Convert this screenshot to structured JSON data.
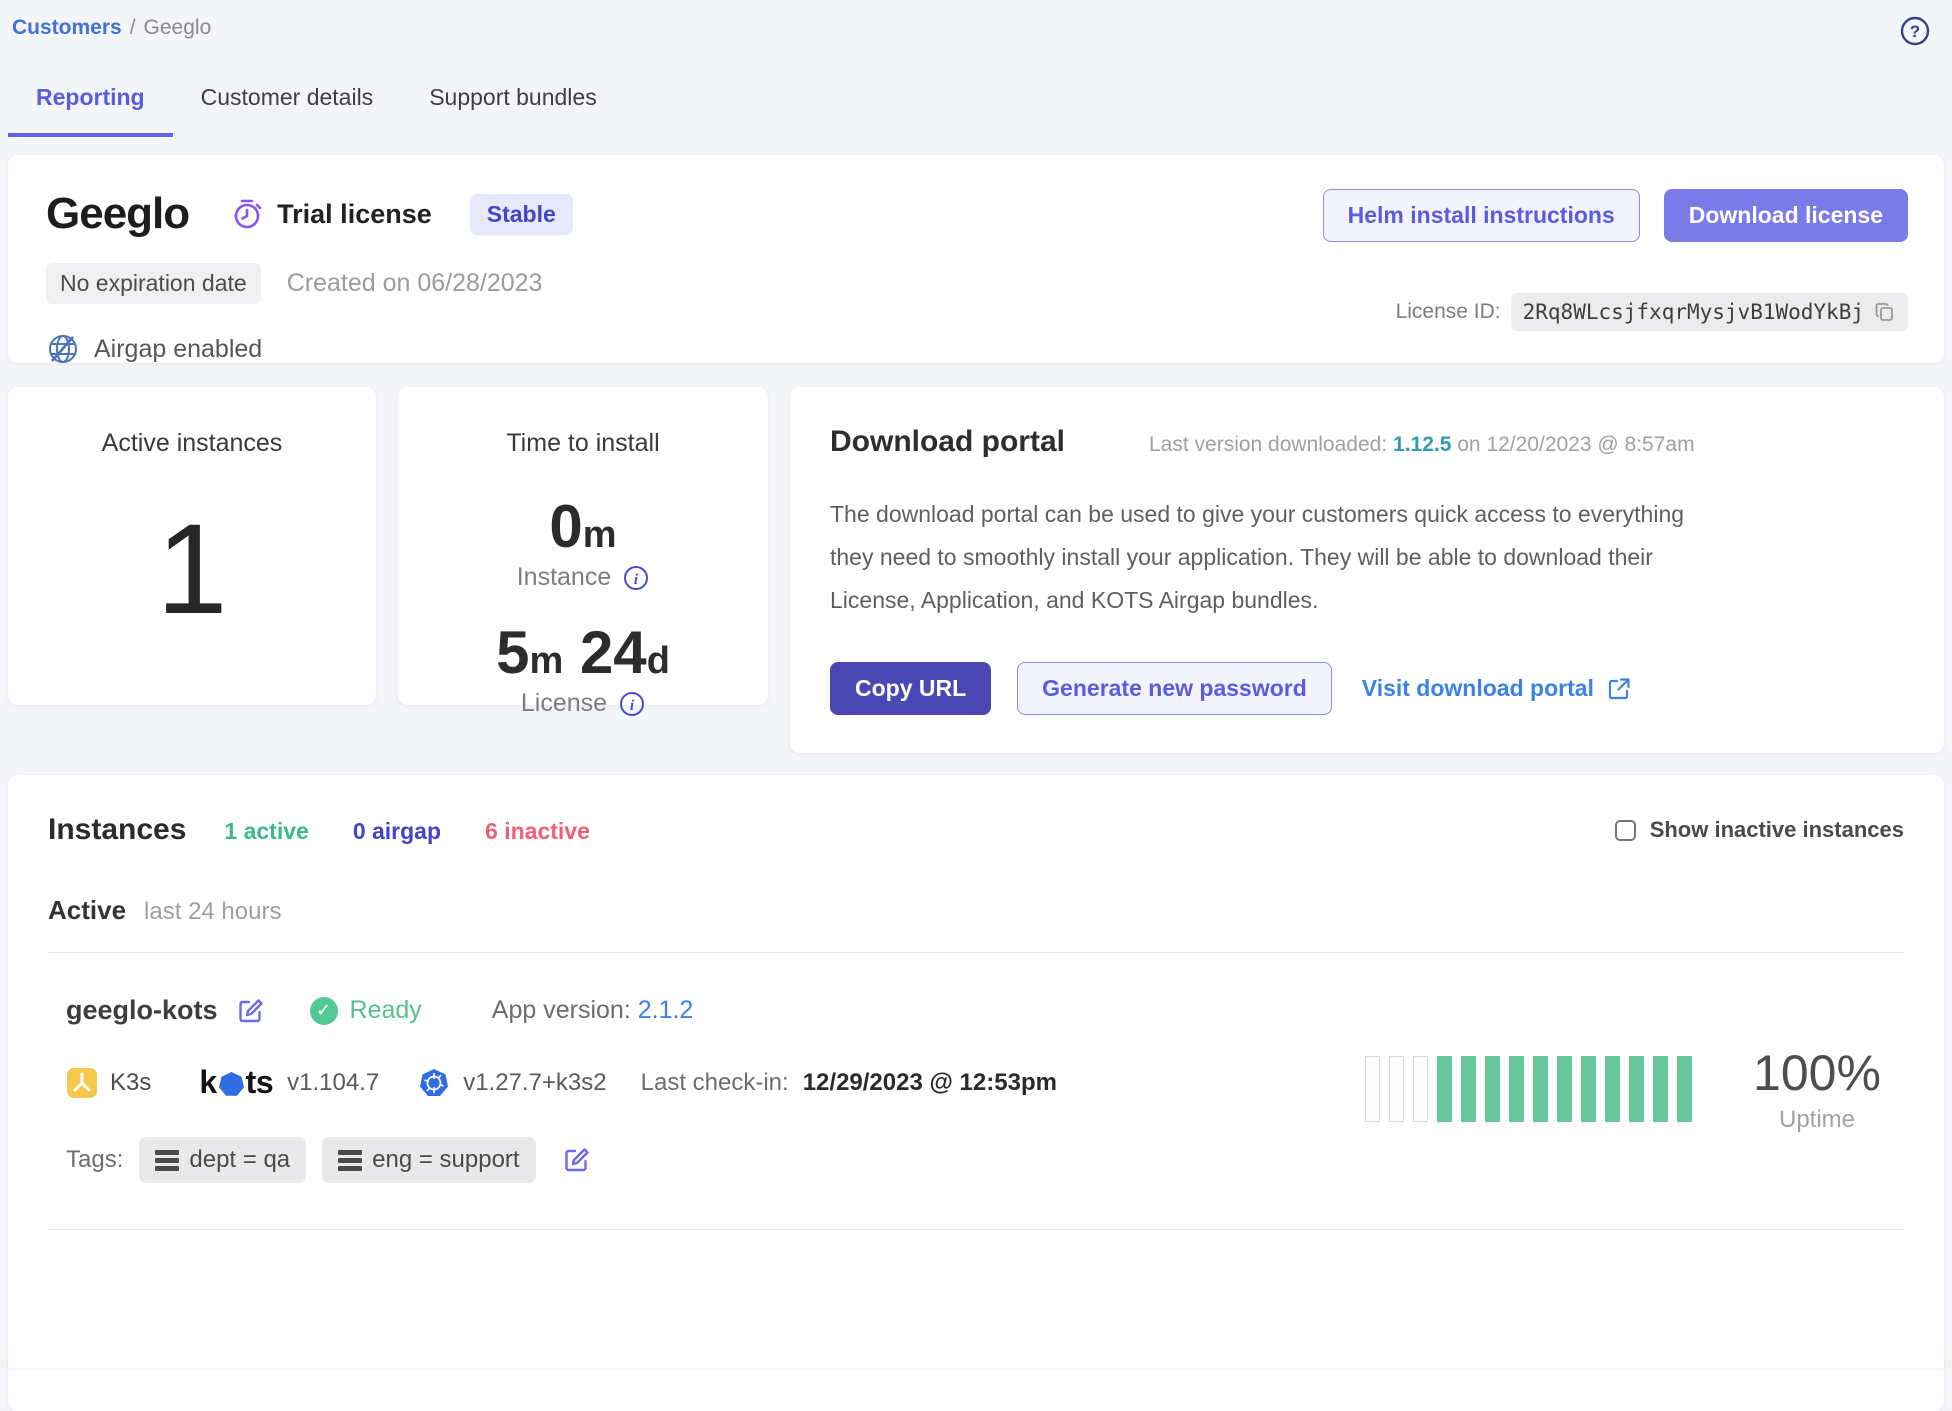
{
  "breadcrumb": {
    "parent": "Customers",
    "separator": "/",
    "current": "Geeglo"
  },
  "tabs": [
    {
      "label": "Reporting"
    },
    {
      "label": "Customer details"
    },
    {
      "label": "Support bundles"
    }
  ],
  "customer": {
    "name": "Geeglo",
    "license_type": "Trial license",
    "channel_badge": "Stable",
    "expiration_badge": "No expiration date",
    "created_on": "Created on 06/28/2023",
    "airgap_label": "Airgap enabled",
    "helm_button": "Helm install instructions",
    "download_button": "Download license",
    "license_id_label": "License ID:",
    "license_id": "2Rq8WLcsjfxqrMysjvB1WodYkBj"
  },
  "active_instances": {
    "title": "Active instances",
    "value": "1"
  },
  "time_to_install": {
    "title": "Time to install",
    "instance_value": "0",
    "instance_unit": "m",
    "instance_label": "Instance",
    "license_months": "5",
    "license_months_unit": "m",
    "license_days": "24",
    "license_days_unit": "d",
    "license_label": "License"
  },
  "download_portal": {
    "title": "Download portal",
    "last_version_label": "Last version downloaded:",
    "last_version": "1.12.5",
    "last_version_suffix": "on 12/20/2023 @ 8:57am",
    "description": "The download portal can be used to give your customers quick access to everything they need to smoothly install your application. They will be able to download their License, Application, and KOTS Airgap bundles.",
    "copy_url_button": "Copy URL",
    "generate_password_button": "Generate new password",
    "visit_portal_link": "Visit download portal"
  },
  "instances": {
    "title": "Instances",
    "counts": [
      {
        "label": "1 active"
      },
      {
        "label": "0 airgap"
      },
      {
        "label": "6 inactive"
      }
    ],
    "show_inactive_label": "Show inactive instances",
    "group_header": "Active",
    "group_subheader": "last 24 hours",
    "instance": {
      "name": "geeglo-kots",
      "status": "Ready",
      "app_version_label": "App version:",
      "app_version": "2.1.2",
      "distribution": "K3s",
      "kots_wordmark_k": "k",
      "kots_wordmark_ts": "ts",
      "kots_version": "v1.104.7",
      "k8s_version": "v1.27.7+k3s2",
      "last_checkin_label": "Last check-in:",
      "last_checkin": "12/29/2023 @ 12:53pm",
      "tags_label": "Tags:",
      "tags": [
        "dept = qa",
        "eng = support"
      ],
      "uptime_percent": "100%",
      "uptime_label": "Uptime",
      "uptime_bars": [
        0,
        0,
        0,
        1,
        1,
        1,
        1,
        1,
        1,
        1,
        1,
        1,
        1,
        1
      ]
    }
  },
  "colors": {
    "accent_indigo": "#5b5be0",
    "link_blue": "#3b82e8",
    "teal_version": "#2f9dae",
    "green": "#3cba8c",
    "pink": "#f25e78",
    "uptime_green": "#66c69c"
  }
}
